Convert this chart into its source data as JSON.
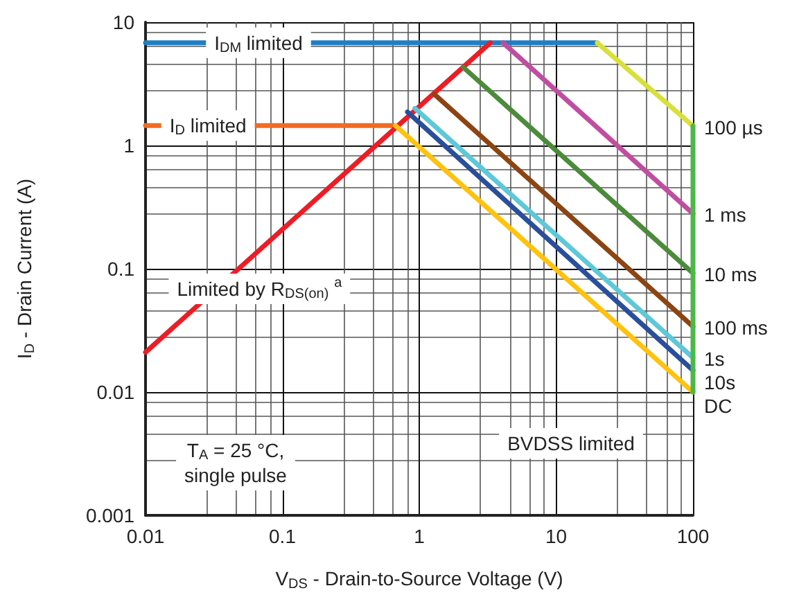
{
  "chart_data": {
    "type": "line",
    "xlabel": "V$_{DS}$ - Drain-to-Source Voltage (V)",
    "ylabel": "I$_{D}$ - Drain Current (A)",
    "log": "xy",
    "xlim": [
      0.01,
      100
    ],
    "ylim": [
      0.001,
      10
    ],
    "xticks": [
      0.01,
      0.1,
      1,
      10,
      100
    ],
    "yticks": [
      0.001,
      0.01,
      0.1,
      1,
      10
    ],
    "grid": true,
    "legend": false,
    "annotations": [
      "T$_{A}$ = 25 °C, single pulse",
      "BVDSS limited"
    ],
    "series": [
      {
        "name": "I$_{DM}$ limited",
        "color": "#1f7fc4",
        "x": [
          0.01,
          20
        ],
        "values": [
          6.8,
          6.8
        ]
      },
      {
        "name": "I$_{D}$ limited",
        "color": "#f26b21",
        "x": [
          0.01,
          0.67
        ],
        "values": [
          1.45,
          1.45
        ]
      },
      {
        "name": "Limited by R$_{DS(on)}$ $^{a}$",
        "color": "#ee1c24",
        "x": [
          0.01,
          3.3
        ],
        "values": [
          0.021,
          6.8
        ]
      },
      {
        "name": "100 µs",
        "color": "#d8e03a",
        "x": [
          20,
          100
        ],
        "values": [
          6.8,
          1.44
        ]
      },
      {
        "name": "1 ms",
        "color": "#c04ea0",
        "x": [
          4.1,
          100
        ],
        "values": [
          6.8,
          0.28
        ]
      },
      {
        "name": "10 ms",
        "color": "#4b8b3b",
        "x": [
          2.1,
          100
        ],
        "values": [
          4.3,
          0.092
        ]
      },
      {
        "name": "100 ms",
        "color": "#8b4513",
        "x": [
          1.29,
          100
        ],
        "values": [
          2.6,
          0.034
        ]
      },
      {
        "name": "1s",
        "color": "#5ec8d8",
        "x": [
          0.93,
          100
        ],
        "values": [
          2.0,
          0.019
        ]
      },
      {
        "name": "10s",
        "color": "#2a4f9a",
        "x": [
          0.82,
          100
        ],
        "values": [
          1.87,
          0.015
        ]
      },
      {
        "name": "DC",
        "color": "#ffc20e",
        "x": [
          0.67,
          100
        ],
        "values": [
          1.45,
          0.01
        ]
      },
      {
        "color": "#4cb848",
        "x": [
          100,
          100
        ],
        "values": [
          1.44,
          0.01
        ]
      }
    ]
  }
}
